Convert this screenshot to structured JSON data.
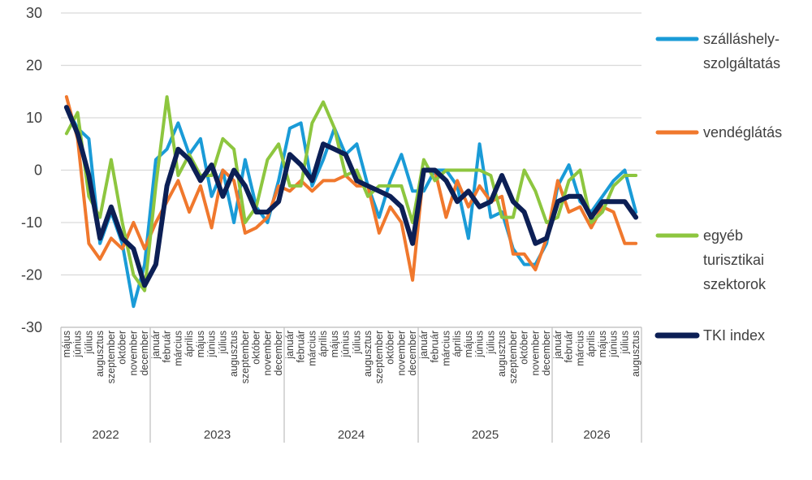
{
  "chart_data": {
    "type": "line",
    "yticks": [
      "30",
      "20",
      "10",
      "0",
      "-10",
      "-20",
      "-30"
    ],
    "ylim": [
      -30,
      30
    ],
    "grid": true,
    "legend_position": "right",
    "x": [
      "május",
      "június",
      "július",
      "augusztus",
      "szeptember",
      "október",
      "november",
      "december",
      "január",
      "február",
      "március",
      "április",
      "május",
      "június",
      "július",
      "augusztus",
      "szeptember",
      "október",
      "november",
      "december",
      "január",
      "február",
      "március",
      "április",
      "május",
      "június",
      "július",
      "augusztus",
      "szeptember",
      "október",
      "november",
      "december",
      "január",
      "február",
      "március",
      "április",
      "május",
      "június",
      "július",
      "augusztus",
      "szeptember",
      "október",
      "november",
      "december",
      "január",
      "február",
      "március",
      "április",
      "május",
      "június",
      "július",
      "augusztus"
    ],
    "years": [
      {
        "label": "2022",
        "start": 0,
        "end": 8
      },
      {
        "label": "2023",
        "start": 8,
        "end": 20
      },
      {
        "label": "2024",
        "start": 20,
        "end": 32
      },
      {
        "label": "2025",
        "start": 32,
        "end": 44
      },
      {
        "label": "2026",
        "start": 44,
        "end": 52
      }
    ],
    "series": [
      {
        "name": "szálláshely-szolgáltatás",
        "legend_lines": [
          "szálláshely-",
          "szolgáltatás"
        ],
        "color": "#1a9bd7",
        "values": [
          12,
          8,
          6,
          -14,
          -8,
          -14,
          -26,
          -18,
          2,
          4,
          9,
          3,
          6,
          -5,
          0,
          -10,
          2,
          -7,
          -10,
          -2,
          8,
          9,
          -3,
          2,
          8,
          3,
          5,
          -3,
          -9,
          -2,
          3,
          -4,
          -4,
          0,
          0,
          -3,
          -13,
          5,
          -9,
          -8,
          -15,
          -18,
          -18,
          -14,
          -3,
          1,
          -6,
          -8,
          -5,
          -2,
          0,
          -8
        ]
      },
      {
        "name": "vendéglátás",
        "legend_lines": [
          "vendéglátás"
        ],
        "color": "#f0782d",
        "values": [
          14,
          6,
          -14,
          -17,
          -13,
          -15,
          -10,
          -15,
          -10,
          -6,
          -2,
          -8,
          -3,
          -11,
          0,
          -2,
          -12,
          -11,
          -9,
          -3,
          -4,
          -2,
          -4,
          -2,
          -2,
          -1,
          -3,
          -3,
          -12,
          -7,
          -10,
          -21,
          0,
          0,
          -9,
          -2,
          -7,
          -3,
          -6,
          -5,
          -16,
          -16,
          -19,
          -13,
          -2,
          -8,
          -7,
          -11,
          -7,
          -8,
          -14,
          -14
        ]
      },
      {
        "name": "egyéb turisztikai szektorok",
        "legend_lines": [
          "egyéb",
          "turisztikai",
          "szektorok"
        ],
        "color": "#8dc63f",
        "values": [
          7,
          11,
          -5,
          -9,
          2,
          -10,
          -20,
          -23,
          -3,
          14,
          -1,
          3,
          -1,
          -1,
          6,
          4,
          -10,
          -7,
          2,
          5,
          -3,
          -3,
          9,
          13,
          8,
          -1,
          0,
          -5,
          -3,
          -3,
          -3,
          -10,
          2,
          -2,
          0,
          0,
          0,
          0,
          -1,
          -9,
          -9,
          0,
          -4,
          -10,
          -9,
          -2,
          0,
          -10,
          -8,
          -3,
          -1,
          -1
        ]
      },
      {
        "name": "TKI index",
        "legend_lines": [
          "TKI index"
        ],
        "color": "#0c1f55",
        "values": [
          12,
          7,
          -1,
          -13,
          -7,
          -13,
          -15,
          -22,
          -18,
          -3,
          4,
          2,
          -2,
          1,
          -5,
          0,
          -3,
          -8,
          -8,
          -6,
          3,
          1,
          -2,
          5,
          4,
          3,
          -2,
          -3,
          -4,
          -5,
          -7,
          -14,
          0,
          0,
          -2,
          -6,
          -4,
          -7,
          -6,
          -1,
          -6,
          -8,
          -14,
          -13,
          -6,
          -5,
          -5,
          -9,
          -6,
          -6,
          -6,
          -9
        ]
      }
    ]
  }
}
